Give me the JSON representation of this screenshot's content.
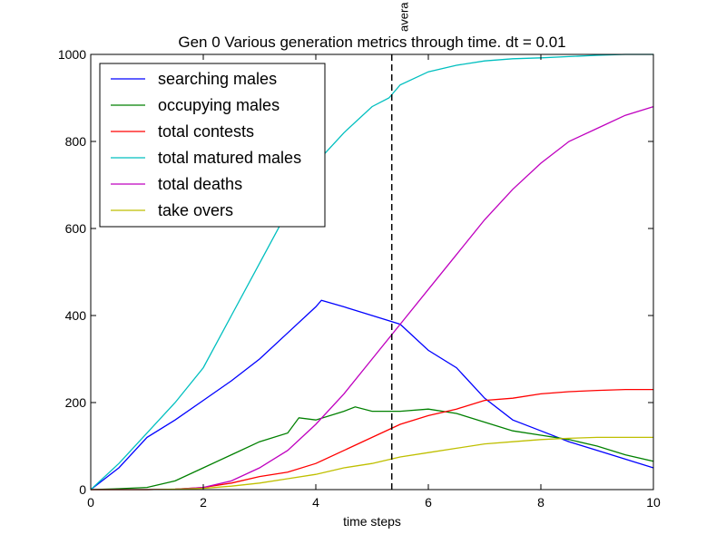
{
  "chart_data": {
    "type": "line",
    "title": "Gen 0 Various generation metrics through time. dt = 0.01",
    "xlabel": "time steps",
    "ylabel": "",
    "xlim": [
      0,
      10
    ],
    "ylim": [
      0,
      1000
    ],
    "xticks": [
      "0",
      "2",
      "4",
      "6",
      "8",
      "10"
    ],
    "yticks": [
      "0",
      "200",
      "400",
      "600",
      "800",
      "1000"
    ],
    "grid": false,
    "legend_position": "top-left",
    "vline": {
      "x": 5.35,
      "label": "avera",
      "style": "dashed"
    },
    "series": [
      {
        "name": "searching males",
        "color": "#0000ff",
        "x": [
          0,
          0.5,
          1,
          1.5,
          2,
          2.5,
          3,
          3.5,
          4,
          4.1,
          4.5,
          5,
          5.5,
          6,
          6.5,
          7,
          7.5,
          8,
          8.5,
          9,
          9.5,
          10
        ],
        "y": [
          0,
          50,
          120,
          160,
          205,
          250,
          300,
          360,
          420,
          435,
          420,
          400,
          380,
          320,
          280,
          210,
          160,
          135,
          110,
          90,
          70,
          50
        ]
      },
      {
        "name": "occupying males",
        "color": "#008000",
        "x": [
          0,
          0.5,
          1,
          1.5,
          2,
          2.5,
          3,
          3.5,
          3.7,
          4,
          4.5,
          4.7,
          5,
          5.5,
          6,
          6.5,
          7,
          7.5,
          8,
          8.5,
          9,
          9.5,
          10
        ],
        "y": [
          0,
          2,
          5,
          20,
          50,
          80,
          110,
          130,
          165,
          160,
          180,
          190,
          180,
          180,
          185,
          175,
          155,
          135,
          125,
          115,
          100,
          80,
          65
        ]
      },
      {
        "name": "total contests",
        "color": "#ff0000",
        "x": [
          0,
          1,
          1.5,
          2,
          2.5,
          3,
          3.5,
          4,
          4.5,
          5,
          5.5,
          6,
          6.5,
          7,
          7.5,
          8,
          8.5,
          9,
          9.5,
          10
        ],
        "y": [
          0,
          0,
          1,
          5,
          15,
          30,
          40,
          60,
          90,
          120,
          150,
          170,
          185,
          205,
          210,
          220,
          225,
          228,
          230,
          230
        ]
      },
      {
        "name": "total matured males",
        "color": "#00bfbf",
        "x": [
          0,
          0.5,
          1,
          1.5,
          2,
          2.5,
          3,
          3.5,
          4,
          4.5,
          5,
          5.3,
          5.5,
          6,
          6.5,
          7,
          7.5,
          8,
          8.5,
          9,
          9.5,
          10
        ],
        "y": [
          0,
          60,
          130,
          200,
          280,
          400,
          520,
          640,
          750,
          820,
          880,
          900,
          930,
          960,
          975,
          985,
          990,
          992,
          995,
          998,
          1000,
          1000
        ]
      },
      {
        "name": "total deaths",
        "color": "#bf00bf",
        "x": [
          0,
          1,
          1.5,
          2,
          2.5,
          3,
          3.5,
          4,
          4.5,
          5,
          5.5,
          6,
          6.5,
          7,
          7.5,
          8,
          8.5,
          9,
          9.5,
          10
        ],
        "y": [
          0,
          0,
          1,
          5,
          20,
          50,
          90,
          150,
          220,
          300,
          380,
          460,
          540,
          620,
          690,
          750,
          800,
          830,
          860,
          880
        ]
      },
      {
        "name": "take overs",
        "color": "#bfbf00",
        "x": [
          0,
          1,
          1.5,
          2,
          2.5,
          3,
          3.5,
          4,
          4.5,
          5,
          5.5,
          6,
          6.5,
          7,
          7.5,
          8,
          8.5,
          9,
          9.5,
          10
        ],
        "y": [
          0,
          0,
          1,
          3,
          8,
          15,
          25,
          35,
          50,
          60,
          75,
          85,
          95,
          105,
          110,
          115,
          118,
          120,
          120,
          120
        ]
      }
    ]
  }
}
